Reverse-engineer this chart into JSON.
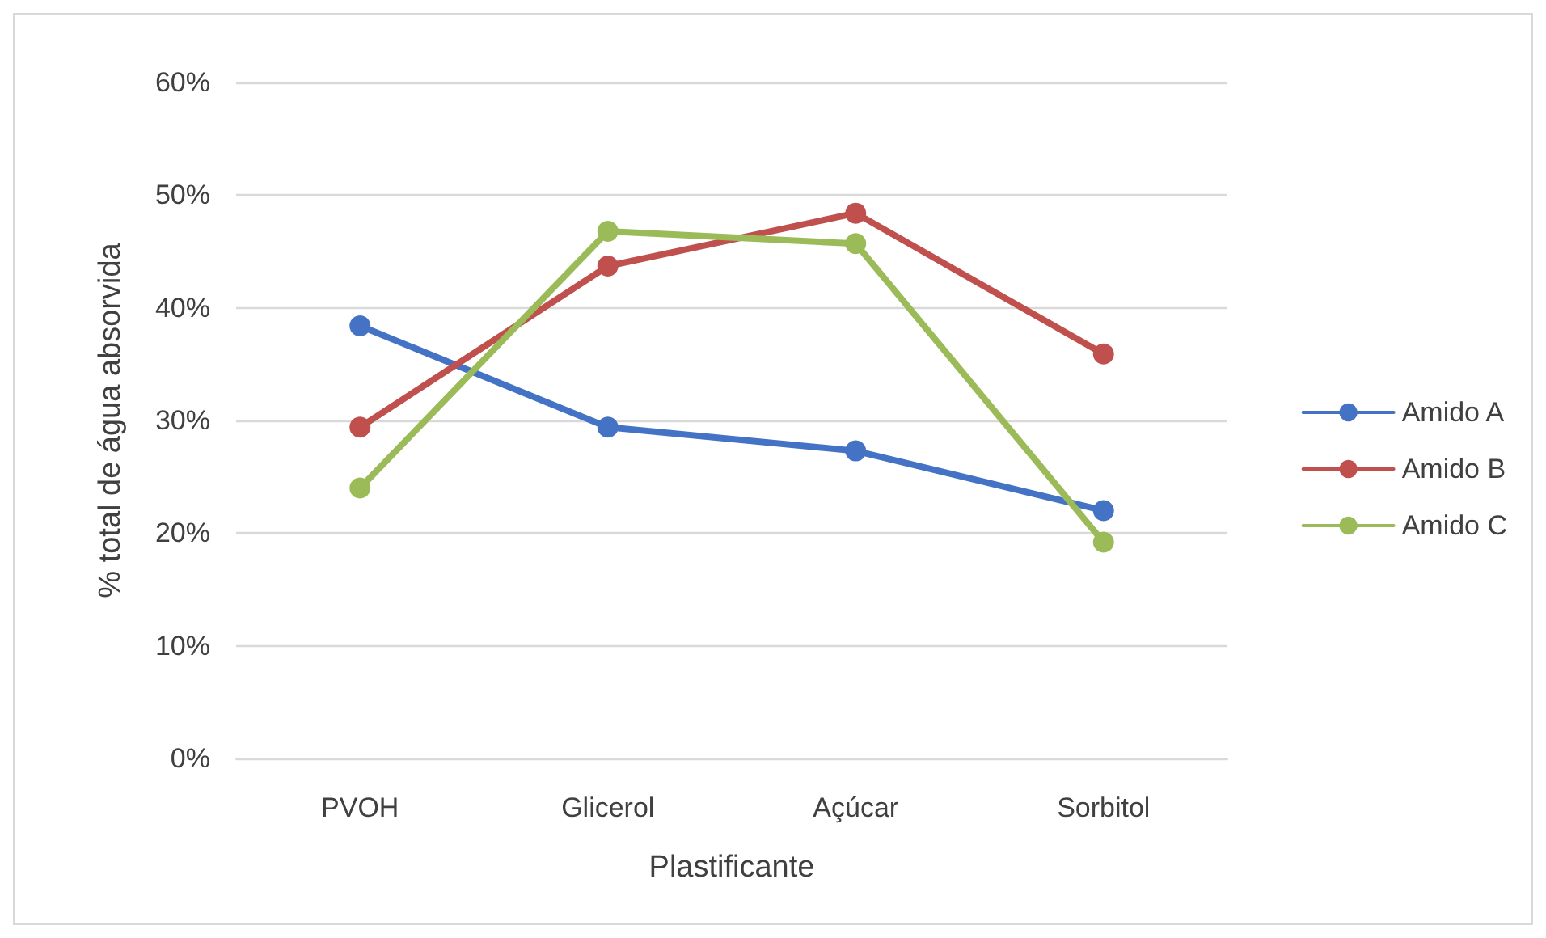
{
  "chart_data": {
    "type": "line",
    "xlabel": "Plastificante",
    "ylabel": "% total de água absorvida",
    "categories": [
      "PVOH",
      "Glicerol",
      "Açúcar",
      "Sorbitol"
    ],
    "series": [
      {
        "name": "Amido A",
        "color": "#4472c4",
        "values": [
          38.4,
          29.4,
          27.3,
          22.0
        ]
      },
      {
        "name": "Amido B",
        "color": "#c0504d",
        "values": [
          29.4,
          43.7,
          48.4,
          35.9
        ]
      },
      {
        "name": "Amido C",
        "color": "#9bbb59",
        "values": [
          24.0,
          46.8,
          45.7,
          19.2
        ]
      }
    ],
    "ylim": [
      0,
      60
    ],
    "yticks": [
      {
        "value": 0,
        "label": "0%"
      },
      {
        "value": 10,
        "label": "10%"
      },
      {
        "value": 20,
        "label": "20%"
      },
      {
        "value": 30,
        "label": "30%"
      },
      {
        "value": 40,
        "label": "40%"
      },
      {
        "value": 50,
        "label": "50%"
      },
      {
        "value": 60,
        "label": "60%"
      }
    ],
    "grid": "y",
    "legend": "right",
    "marker": "circle",
    "line_style": "solid"
  }
}
